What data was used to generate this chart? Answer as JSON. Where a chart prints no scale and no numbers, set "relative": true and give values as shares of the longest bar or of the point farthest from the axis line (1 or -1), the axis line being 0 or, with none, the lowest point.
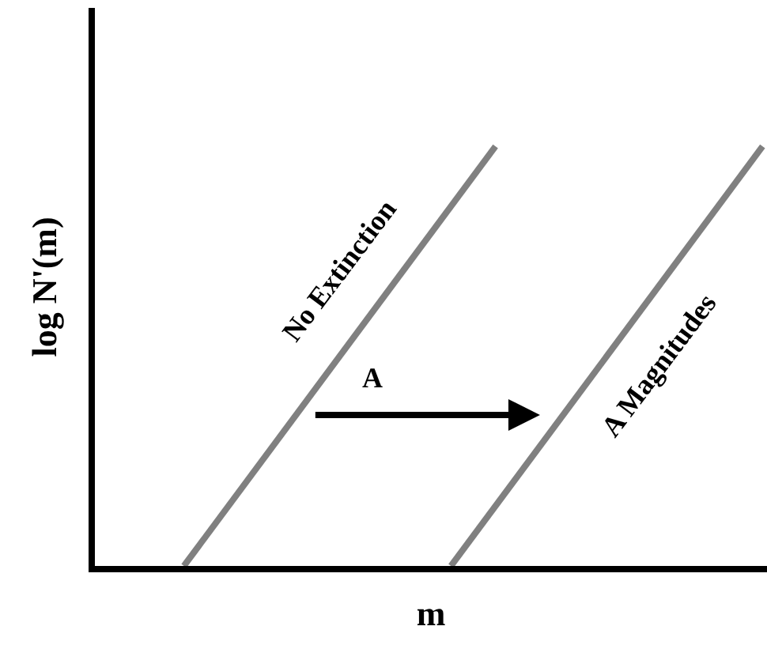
{
  "chart_data": {
    "type": "line",
    "relative": true,
    "xlabel": "m",
    "ylabel": "log N'(m)",
    "categories": [
      null,
      null,
      null,
      null,
      null,
      null,
      null,
      null,
      null,
      null,
      null,
      null,
      null,
      null
    ],
    "series": [
      {
        "name": "No Extinction",
        "color": "#808080",
        "values": [
          0,
          null,
          null,
          null,
          null,
          null,
          null,
          1,
          null,
          null,
          null,
          null,
          null,
          null
        ]
      },
      {
        "name": "A Magnitudes",
        "color": "#808080",
        "values": [
          null,
          null,
          null,
          null,
          null,
          null,
          0,
          null,
          null,
          null,
          null,
          null,
          null,
          1
        ]
      }
    ],
    "annotations": [
      "A"
    ],
    "legend": false,
    "marker": "none",
    "line_style": "solid",
    "tick_labels": false
  }
}
